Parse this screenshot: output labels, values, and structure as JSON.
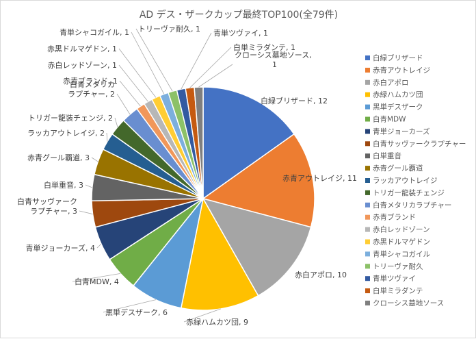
{
  "chart_data": {
    "type": "pie",
    "title": "AD デス・ザークカップ最終TOP100(全79件)",
    "legend_position": "right",
    "slices": [
      {
        "label": "白緑ブリザード",
        "value": 12,
        "color": "#4472C4",
        "data_label": "白緑ブリザード, 12"
      },
      {
        "label": "赤青アウトレイジ",
        "value": 11,
        "color": "#ED7D31",
        "data_label": "赤青アウトレイジ, 11"
      },
      {
        "label": "赤白アポロ",
        "value": 10,
        "color": "#A5A5A5",
        "data_label": "赤白アポロ, 10"
      },
      {
        "label": "赤緑ハムカツ団",
        "value": 9,
        "color": "#FFC000",
        "data_label": "赤緑ハムカツ団, 9"
      },
      {
        "label": "黒単デスザーク",
        "value": 6,
        "color": "#5B9BD5",
        "data_label": "黒単デスザーク, 6"
      },
      {
        "label": "白青MDW",
        "value": 4,
        "color": "#70AD47",
        "data_label": "白青MDW, 4"
      },
      {
        "label": "青単ジョーカーズ",
        "value": 4,
        "color": "#264478",
        "data_label": "青単ジョーカーズ, 4"
      },
      {
        "label": "白青サッヴァークラプチャー",
        "value": 3,
        "color": "#9E480E",
        "data_label": "白青サッヴァーク\nラプチャー, 3"
      },
      {
        "label": "白単重音",
        "value": 3,
        "color": "#636363",
        "data_label": "白単重音, 3"
      },
      {
        "label": "赤青グール覇道",
        "value": 3,
        "color": "#997300",
        "data_label": "赤青グール覇道, 3"
      },
      {
        "label": "ラッカアウトレイジ",
        "value": 2,
        "color": "#255E91",
        "data_label": "ラッカアウトレイジ, 2"
      },
      {
        "label": "トリガー龍装チェンジ",
        "value": 2,
        "color": "#43682B",
        "data_label": "トリガー龍装チェンジ, 2"
      },
      {
        "label": "白青メタリカラプチャー",
        "value": 2,
        "color": "#698ED0",
        "data_label": "白青メタリカ\nラプチャー, 2"
      },
      {
        "label": "赤青ブランド",
        "value": 1,
        "color": "#F1975A",
        "data_label": "赤青ブランド, 1"
      },
      {
        "label": "赤白レッドゾーン",
        "value": 1,
        "color": "#B7B7B7",
        "data_label": "赤白レッドゾーン, 1"
      },
      {
        "label": "赤黒ドルマゲドン",
        "value": 1,
        "color": "#FFCD33",
        "data_label": "赤黒ドルマゲドン, 1"
      },
      {
        "label": "青単シャコガイル",
        "value": 1,
        "color": "#7CAFDD",
        "data_label": "青単シャコガイル, 1"
      },
      {
        "label": "トリーヴァ耐久",
        "value": 1,
        "color": "#8CC168",
        "data_label": "トリーヴァ耐久, 1"
      },
      {
        "label": "青単ツヴァイ",
        "value": 1,
        "color": "#335AA1",
        "data_label": "青単ツヴァイ, 1"
      },
      {
        "label": "白単ミラダンテ",
        "value": 1,
        "color": "#C55A11",
        "data_label": "白単ミラダンテ, 1"
      },
      {
        "label": "クローシス墓地ソース",
        "value": 1,
        "color": "#7F7F7F",
        "data_label": "クローシス墓地ソース,\n1"
      }
    ]
  }
}
